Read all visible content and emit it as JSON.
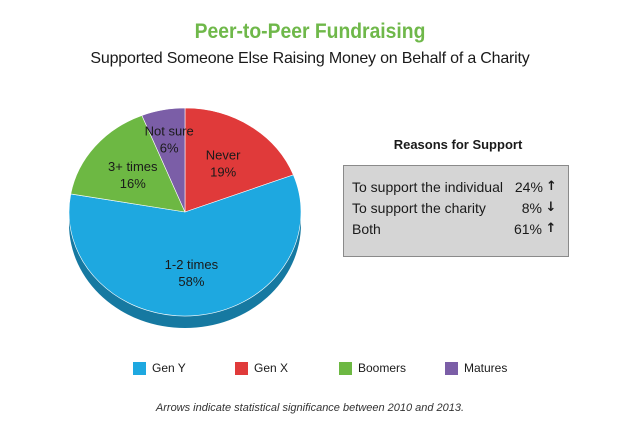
{
  "title": "Peer-to-Peer Fundraising",
  "subtitle": "Supported Someone Else Raising Money on Behalf of a Charity",
  "chart_data": {
    "type": "pie",
    "title": "Supported Someone Else Raising Money on Behalf of a Charity",
    "slices": [
      {
        "label": "Never",
        "value": 19,
        "value_label": "19%",
        "color": "#e03a3a"
      },
      {
        "label": "1-2 times",
        "value": 58,
        "value_label": "58%",
        "color": "#1ea8e0"
      },
      {
        "label": "3+ times",
        "value": 16,
        "value_label": "16%",
        "color": "#6db843"
      },
      {
        "label": "Not sure",
        "value": 6,
        "value_label": "6%",
        "color": "#7b5ea7"
      }
    ],
    "start_angle_deg": 0,
    "direction": "clockwise",
    "three_d": true
  },
  "reasons": {
    "title": "Reasons for Support",
    "rows": [
      {
        "label": "To support the individual",
        "value": "24%",
        "arrow": "↑"
      },
      {
        "label": "To support the charity",
        "value": "8%",
        "arrow": "↓"
      },
      {
        "label": "Both",
        "value": "61%",
        "arrow": "↑"
      }
    ]
  },
  "legend": {
    "items": [
      {
        "label": "Gen Y",
        "color": "#1ea8e0"
      },
      {
        "label": "Gen X",
        "color": "#e03a3a"
      },
      {
        "label": "Boomers",
        "color": "#6db843"
      },
      {
        "label": "Matures",
        "color": "#7b5ea7"
      }
    ]
  },
  "footnote": "Arrows indicate statistical significance between 2010 and 2013."
}
